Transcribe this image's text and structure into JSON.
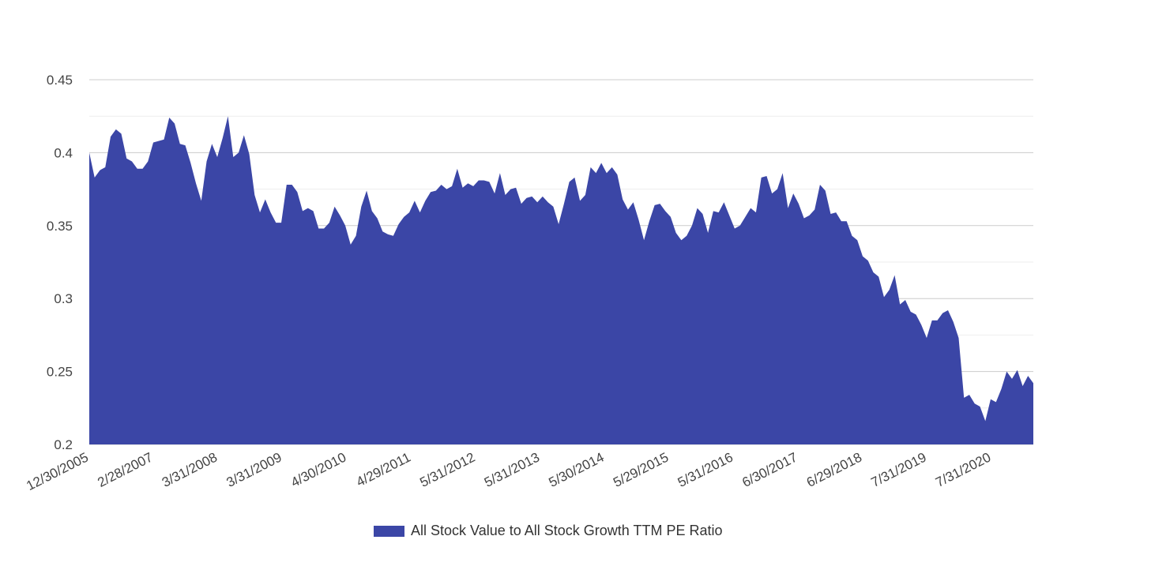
{
  "chart_data": {
    "type": "area",
    "title": "",
    "xlabel": "",
    "ylabel": "",
    "ylim": [
      0.2,
      0.45
    ],
    "y_ticks": [
      "0.45",
      "0.4",
      "0.35",
      "0.3",
      "0.25",
      "0.2"
    ],
    "x_tick_labels": [
      "12/30/2005",
      "2/28/2007",
      "3/31/2008",
      "3/31/2009",
      "4/30/2010",
      "4/29/2011",
      "5/31/2012",
      "5/31/2013",
      "5/30/2014",
      "5/29/2015",
      "5/31/2016",
      "6/30/2017",
      "6/29/2018",
      "7/31/2019",
      "7/31/2020"
    ],
    "series": [
      {
        "name": "All Stock Value to All Stock Growth TTM PE Ratio",
        "color": "#3b46a6",
        "values": [
          0.4,
          0.383,
          0.388,
          0.39,
          0.411,
          0.416,
          0.413,
          0.396,
          0.394,
          0.389,
          0.389,
          0.394,
          0.407,
          0.408,
          0.409,
          0.424,
          0.42,
          0.406,
          0.405,
          0.393,
          0.379,
          0.367,
          0.394,
          0.406,
          0.397,
          0.41,
          0.425,
          0.397,
          0.4,
          0.412,
          0.399,
          0.371,
          0.359,
          0.368,
          0.359,
          0.352,
          0.352,
          0.378,
          0.378,
          0.373,
          0.36,
          0.362,
          0.36,
          0.348,
          0.348,
          0.352,
          0.363,
          0.357,
          0.35,
          0.337,
          0.343,
          0.363,
          0.374,
          0.36,
          0.355,
          0.346,
          0.344,
          0.343,
          0.351,
          0.356,
          0.359,
          0.367,
          0.359,
          0.367,
          0.373,
          0.374,
          0.378,
          0.375,
          0.377,
          0.389,
          0.376,
          0.379,
          0.377,
          0.381,
          0.381,
          0.38,
          0.372,
          0.386,
          0.371,
          0.375,
          0.376,
          0.365,
          0.369,
          0.37,
          0.366,
          0.37,
          0.366,
          0.363,
          0.351,
          0.365,
          0.38,
          0.383,
          0.367,
          0.371,
          0.39,
          0.386,
          0.393,
          0.386,
          0.39,
          0.385,
          0.368,
          0.361,
          0.366,
          0.354,
          0.34,
          0.353,
          0.364,
          0.365,
          0.36,
          0.356,
          0.345,
          0.34,
          0.343,
          0.35,
          0.362,
          0.358,
          0.345,
          0.36,
          0.359,
          0.366,
          0.357,
          0.348,
          0.35,
          0.356,
          0.362,
          0.359,
          0.383,
          0.384,
          0.372,
          0.375,
          0.386,
          0.362,
          0.372,
          0.365,
          0.355,
          0.357,
          0.361,
          0.378,
          0.374,
          0.358,
          0.359,
          0.353,
          0.353,
          0.343,
          0.34,
          0.329,
          0.326,
          0.318,
          0.315,
          0.301,
          0.306,
          0.316,
          0.296,
          0.299,
          0.291,
          0.289,
          0.282,
          0.273,
          0.285,
          0.285,
          0.29,
          0.292,
          0.284,
          0.273,
          0.232,
          0.234,
          0.228,
          0.226,
          0.216,
          0.231,
          0.229,
          0.238,
          0.25,
          0.245,
          0.251,
          0.24,
          0.247,
          0.242
        ]
      }
    ],
    "legend_position": "bottom"
  },
  "colors": {
    "series": "#3b46a6",
    "grid": "#cccccc",
    "minor_grid": "#eeeeee",
    "axis_text": "#444444"
  }
}
